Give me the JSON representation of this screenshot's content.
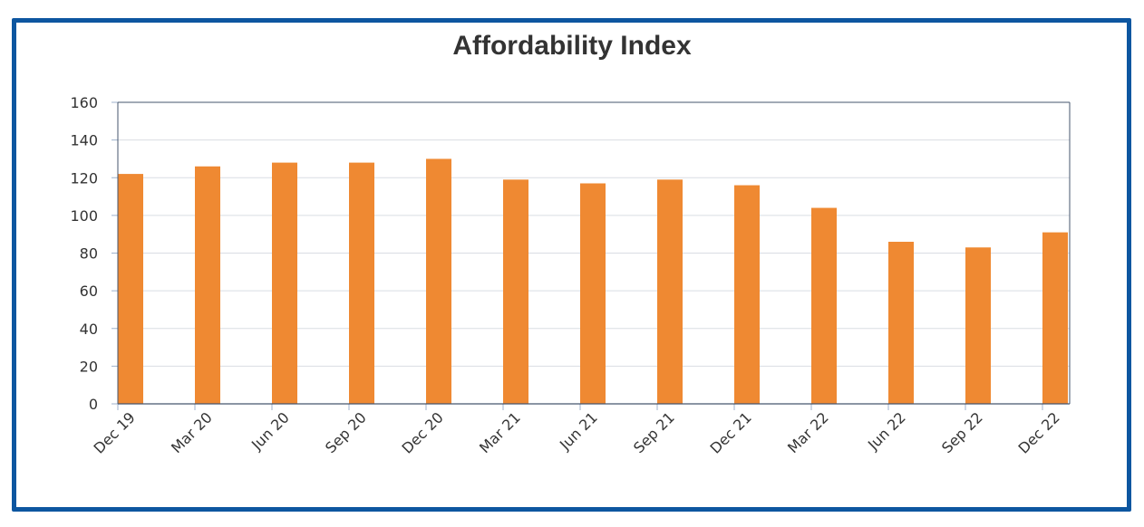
{
  "colors": {
    "frame": "#0d56a0",
    "bar": "#ef8932",
    "grid": "#d9dde3",
    "axis": "#46566e",
    "text": "#333333"
  },
  "chart_data": {
    "type": "bar",
    "title": "Affordability Index",
    "xlabel": "",
    "ylabel": "",
    "categories": [
      "Dec 19",
      "Mar 20",
      "Jun 20",
      "Sep 20",
      "Dec 20",
      "Mar 21",
      "Jun 21",
      "Sep 21",
      "Dec 21",
      "Mar 22",
      "Jun 22",
      "Sep 22",
      "Dec 22"
    ],
    "series": [
      {
        "name": "Affordability Index",
        "values": [
          122,
          126,
          128,
          128,
          130,
          119,
          117,
          119,
          116,
          104,
          86,
          83,
          91
        ]
      }
    ],
    "ylim": [
      0,
      160
    ],
    "yticks": [
      0,
      20,
      40,
      60,
      80,
      100,
      120,
      140,
      160
    ],
    "grid": true,
    "legend": "none",
    "xtick_rotation_deg": -45
  }
}
